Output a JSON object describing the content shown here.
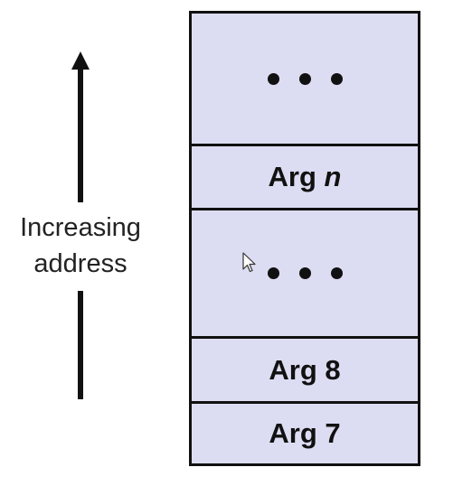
{
  "axis": {
    "label_line1": "Increasing",
    "label_line2": "address",
    "direction": "up"
  },
  "stack": {
    "top_ellipsis": "• • •",
    "arg_n_prefix": "Arg ",
    "arg_n_var": "n",
    "middle_ellipsis": "• • •",
    "arg8": "Arg 8",
    "arg7": "Arg 7"
  },
  "colors": {
    "cell_fill": "#dcdcf2",
    "border": "#111111",
    "text": "#111111"
  }
}
